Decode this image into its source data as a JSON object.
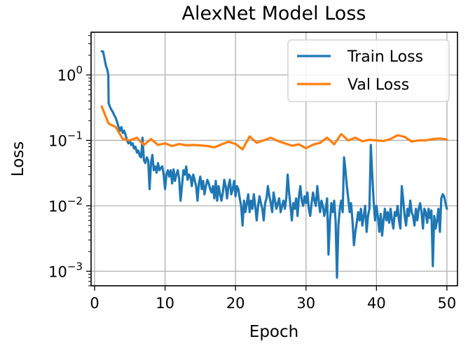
{
  "chart_data": {
    "type": "line",
    "title": "AlexNet Model Loss",
    "xlabel": "Epoch",
    "ylabel": "Loss",
    "yscale": "log",
    "xlim": [
      -0.5,
      51.5
    ],
    "ylim": [
      0.0006,
      4.5
    ],
    "grid": true,
    "legend_position": "top-right",
    "xticks": [
      {
        "value": 0,
        "label": "0"
      },
      {
        "value": 10,
        "label": "10"
      },
      {
        "value": 20,
        "label": "20"
      },
      {
        "value": 30,
        "label": "30"
      },
      {
        "value": 40,
        "label": "40"
      },
      {
        "value": 50,
        "label": "50"
      }
    ],
    "yticks": [
      {
        "value": 1,
        "base": "10",
        "exp": "0"
      },
      {
        "value": 0.1,
        "base": "10",
        "exp": "−1"
      },
      {
        "value": 0.01,
        "base": "10",
        "exp": "−2"
      },
      {
        "value": 0.001,
        "base": "10",
        "exp": "−3"
      }
    ],
    "series": [
      {
        "name": "Train Loss",
        "color": "#1f77b4",
        "points": [
          [
            1.0,
            2.3
          ],
          [
            1.2,
            2.28
          ],
          [
            1.4,
            1.8
          ],
          [
            1.6,
            1.4
          ],
          [
            1.8,
            1.2
          ],
          [
            1.95,
            1.0
          ],
          [
            2.0,
            0.37
          ],
          [
            2.2,
            0.32
          ],
          [
            2.4,
            0.29
          ],
          [
            2.6,
            0.27
          ],
          [
            2.8,
            0.24
          ],
          [
            3.0,
            0.22
          ],
          [
            3.2,
            0.19
          ],
          [
            3.4,
            0.16
          ],
          [
            3.6,
            0.14
          ],
          [
            3.8,
            0.16
          ],
          [
            4.0,
            0.13
          ],
          [
            4.2,
            0.14
          ],
          [
            4.4,
            0.12
          ],
          [
            4.6,
            0.1
          ],
          [
            4.8,
            0.09
          ],
          [
            5.0,
            0.1
          ],
          [
            5.2,
            0.085
          ],
          [
            5.4,
            0.09
          ],
          [
            5.6,
            0.075
          ],
          [
            5.8,
            0.08
          ],
          [
            6.0,
            0.065
          ],
          [
            6.2,
            0.07
          ],
          [
            6.4,
            0.058
          ],
          [
            6.6,
            0.055
          ],
          [
            6.8,
            0.11
          ],
          [
            7.0,
            0.05
          ],
          [
            7.2,
            0.045
          ],
          [
            7.4,
            0.055
          ],
          [
            7.6,
            0.05
          ],
          [
            7.8,
            0.018
          ],
          [
            8.0,
            0.045
          ],
          [
            8.2,
            0.06
          ],
          [
            8.4,
            0.035
          ],
          [
            8.6,
            0.04
          ],
          [
            8.8,
            0.032
          ],
          [
            9.0,
            0.045
          ],
          [
            9.2,
            0.035
          ],
          [
            9.4,
            0.038
          ],
          [
            9.6,
            0.04
          ],
          [
            9.8,
            0.03
          ],
          [
            10.0,
            0.018
          ],
          [
            10.2,
            0.03
          ],
          [
            10.4,
            0.035
          ],
          [
            10.6,
            0.028
          ],
          [
            10.8,
            0.035
          ],
          [
            11.0,
            0.022
          ],
          [
            11.2,
            0.036
          ],
          [
            11.4,
            0.024
          ],
          [
            11.6,
            0.03
          ],
          [
            11.8,
            0.035
          ],
          [
            12.0,
            0.026
          ],
          [
            12.2,
            0.012
          ],
          [
            12.4,
            0.02
          ],
          [
            12.6,
            0.035
          ],
          [
            12.8,
            0.03
          ],
          [
            13.0,
            0.04
          ],
          [
            13.2,
            0.025
          ],
          [
            13.4,
            0.03
          ],
          [
            13.6,
            0.028
          ],
          [
            13.8,
            0.02
          ],
          [
            14.0,
            0.03
          ],
          [
            14.2,
            0.025
          ],
          [
            14.4,
            0.02
          ],
          [
            14.6,
            0.012
          ],
          [
            14.8,
            0.022
          ],
          [
            15.0,
            0.028
          ],
          [
            15.2,
            0.018
          ],
          [
            15.4,
            0.024
          ],
          [
            15.6,
            0.015
          ],
          [
            15.8,
            0.02
          ],
          [
            16.0,
            0.025
          ],
          [
            16.2,
            0.022
          ],
          [
            16.4,
            0.018
          ],
          [
            16.6,
            0.016
          ],
          [
            16.8,
            0.02
          ],
          [
            17.0,
            0.013
          ],
          [
            17.2,
            0.024
          ],
          [
            17.4,
            0.012
          ],
          [
            17.6,
            0.02
          ],
          [
            17.8,
            0.015
          ],
          [
            18.0,
            0.012
          ],
          [
            18.2,
            0.016
          ],
          [
            18.4,
            0.025
          ],
          [
            18.6,
            0.02
          ],
          [
            18.8,
            0.013
          ],
          [
            19.0,
            0.02
          ],
          [
            19.2,
            0.025
          ],
          [
            19.4,
            0.015
          ],
          [
            19.6,
            0.018
          ],
          [
            19.8,
            0.024
          ],
          [
            20.0,
            0.014
          ],
          [
            20.2,
            0.02
          ],
          [
            20.4,
            0.018
          ],
          [
            20.6,
            0.013
          ],
          [
            20.8,
            0.01
          ],
          [
            21.0,
            0.005
          ],
          [
            21.2,
            0.012
          ],
          [
            21.4,
            0.008
          ],
          [
            21.6,
            0.011
          ],
          [
            21.8,
            0.015
          ],
          [
            22.0,
            0.008
          ],
          [
            22.2,
            0.012
          ],
          [
            22.4,
            0.009
          ],
          [
            22.6,
            0.015
          ],
          [
            22.8,
            0.01
          ],
          [
            23.0,
            0.006
          ],
          [
            23.2,
            0.01
          ],
          [
            23.4,
            0.014
          ],
          [
            23.6,
            0.011
          ],
          [
            23.8,
            0.009
          ],
          [
            24.0,
            0.006
          ],
          [
            24.2,
            0.011
          ],
          [
            24.4,
            0.013
          ],
          [
            24.6,
            0.02
          ],
          [
            24.8,
            0.014
          ],
          [
            25.0,
            0.011
          ],
          [
            25.2,
            0.008
          ],
          [
            25.4,
            0.016
          ],
          [
            25.6,
            0.012
          ],
          [
            25.8,
            0.009
          ],
          [
            26.0,
            0.011
          ],
          [
            26.2,
            0.013
          ],
          [
            26.4,
            0.008
          ],
          [
            26.6,
            0.01
          ],
          [
            26.8,
            0.012
          ],
          [
            27.0,
            0.009
          ],
          [
            27.2,
            0.013
          ],
          [
            27.4,
            0.03
          ],
          [
            27.6,
            0.016
          ],
          [
            27.8,
            0.01
          ],
          [
            28.0,
            0.006
          ],
          [
            28.2,
            0.011
          ],
          [
            28.4,
            0.009
          ],
          [
            28.6,
            0.013
          ],
          [
            28.8,
            0.007
          ],
          [
            29.0,
            0.014
          ],
          [
            29.2,
            0.02
          ],
          [
            29.4,
            0.012
          ],
          [
            29.6,
            0.01
          ],
          [
            29.8,
            0.014
          ],
          [
            30.0,
            0.011
          ],
          [
            30.2,
            0.016
          ],
          [
            30.4,
            0.009
          ],
          [
            30.6,
            0.007
          ],
          [
            30.8,
            0.011
          ],
          [
            31.0,
            0.016
          ],
          [
            31.2,
            0.012
          ],
          [
            31.4,
            0.01
          ],
          [
            31.6,
            0.02
          ],
          [
            31.8,
            0.012
          ],
          [
            32.0,
            0.008
          ],
          [
            32.2,
            0.012
          ],
          [
            32.4,
            0.01
          ],
          [
            32.6,
            0.007
          ],
          [
            32.8,
            0.009
          ],
          [
            33.0,
            0.013
          ],
          [
            33.2,
            0.0018
          ],
          [
            33.4,
            0.006
          ],
          [
            33.6,
            0.011
          ],
          [
            33.8,
            0.008
          ],
          [
            34.0,
            0.012
          ],
          [
            34.2,
            0.006
          ],
          [
            34.4,
            0.0008
          ],
          [
            34.6,
            0.005
          ],
          [
            34.8,
            0.009
          ],
          [
            35.0,
            0.012
          ],
          [
            35.2,
            0.008
          ],
          [
            35.4,
            0.055
          ],
          [
            35.6,
            0.035
          ],
          [
            35.8,
            0.02
          ],
          [
            36.0,
            0.013
          ],
          [
            36.2,
            0.008
          ],
          [
            36.4,
            0.011
          ],
          [
            36.6,
            0.006
          ],
          [
            36.8,
            0.0025
          ],
          [
            37.0,
            0.004
          ],
          [
            37.2,
            0.0055
          ],
          [
            37.4,
            0.008
          ],
          [
            37.6,
            0.006
          ],
          [
            37.8,
            0.009
          ],
          [
            38.0,
            0.005
          ],
          [
            38.2,
            0.007
          ],
          [
            38.4,
            0.01
          ],
          [
            38.6,
            0.004
          ],
          [
            38.8,
            0.007
          ],
          [
            39.0,
            0.009
          ],
          [
            39.2,
            0.085
          ],
          [
            39.4,
            0.03
          ],
          [
            39.6,
            0.012
          ],
          [
            39.8,
            0.006
          ],
          [
            40.0,
            0.01
          ],
          [
            40.2,
            0.007
          ],
          [
            40.4,
            0.004
          ],
          [
            40.6,
            0.0075
          ],
          [
            40.8,
            0.0035
          ],
          [
            41.0,
            0.006
          ],
          [
            41.2,
            0.009
          ],
          [
            41.4,
            0.006
          ],
          [
            41.6,
            0.008
          ],
          [
            41.8,
            0.0055
          ],
          [
            42.0,
            0.009
          ],
          [
            42.2,
            0.006
          ],
          [
            42.4,
            0.0045
          ],
          [
            42.6,
            0.008
          ],
          [
            42.8,
            0.007
          ],
          [
            43.0,
            0.01
          ],
          [
            43.2,
            0.006
          ],
          [
            43.4,
            0.0045
          ],
          [
            43.6,
            0.02
          ],
          [
            43.8,
            0.012
          ],
          [
            44.0,
            0.007
          ],
          [
            44.2,
            0.005
          ],
          [
            44.4,
            0.009
          ],
          [
            44.6,
            0.007
          ],
          [
            44.8,
            0.012
          ],
          [
            45.0,
            0.008
          ],
          [
            45.2,
            0.007
          ],
          [
            45.4,
            0.005
          ],
          [
            45.6,
            0.009
          ],
          [
            45.8,
            0.006
          ],
          [
            46.0,
            0.009
          ],
          [
            46.2,
            0.011
          ],
          [
            46.4,
            0.008
          ],
          [
            46.6,
            0.0045
          ],
          [
            46.8,
            0.009
          ],
          [
            47.0,
            0.008
          ],
          [
            47.2,
            0.0055
          ],
          [
            47.4,
            0.009
          ],
          [
            47.6,
            0.0065
          ],
          [
            47.8,
            0.0085
          ],
          [
            48.0,
            0.0012
          ],
          [
            48.2,
            0.007
          ],
          [
            48.4,
            0.0045
          ],
          [
            48.6,
            0.006
          ],
          [
            48.8,
            0.009
          ],
          [
            49.0,
            0.004
          ],
          [
            49.2,
            0.013
          ],
          [
            49.4,
            0.015
          ],
          [
            49.6,
            0.014
          ],
          [
            49.8,
            0.011
          ],
          [
            50.0,
            0.009
          ]
        ]
      },
      {
        "name": "Val Loss",
        "color": "#ff7f0e",
        "points": [
          [
            1,
            0.33
          ],
          [
            2,
            0.18
          ],
          [
            3,
            0.16
          ],
          [
            4,
            0.105
          ],
          [
            5,
            0.1
          ],
          [
            6,
            0.11
          ],
          [
            7,
            0.085
          ],
          [
            8,
            0.105
          ],
          [
            9,
            0.085
          ],
          [
            10,
            0.09
          ],
          [
            11,
            0.082
          ],
          [
            12,
            0.088
          ],
          [
            13,
            0.084
          ],
          [
            14,
            0.085
          ],
          [
            15,
            0.084
          ],
          [
            16,
            0.082
          ],
          [
            17,
            0.078
          ],
          [
            18,
            0.087
          ],
          [
            19,
            0.095
          ],
          [
            20,
            0.088
          ],
          [
            21,
            0.073
          ],
          [
            22,
            0.115
          ],
          [
            23,
            0.092
          ],
          [
            24,
            0.1
          ],
          [
            25,
            0.11
          ],
          [
            26,
            0.098
          ],
          [
            27,
            0.09
          ],
          [
            28,
            0.083
          ],
          [
            29,
            0.087
          ],
          [
            30,
            0.076
          ],
          [
            31,
            0.086
          ],
          [
            32,
            0.092
          ],
          [
            33,
            0.11
          ],
          [
            34,
            0.087
          ],
          [
            35,
            0.125
          ],
          [
            36,
            0.1
          ],
          [
            37,
            0.11
          ],
          [
            38,
            0.097
          ],
          [
            39,
            0.102
          ],
          [
            40,
            0.1
          ],
          [
            41,
            0.098
          ],
          [
            42,
            0.105
          ],
          [
            43,
            0.12
          ],
          [
            44,
            0.113
          ],
          [
            45,
            0.096
          ],
          [
            46,
            0.1
          ],
          [
            47,
            0.1
          ],
          [
            48,
            0.105
          ],
          [
            49,
            0.107
          ],
          [
            50,
            0.103
          ]
        ]
      }
    ]
  }
}
